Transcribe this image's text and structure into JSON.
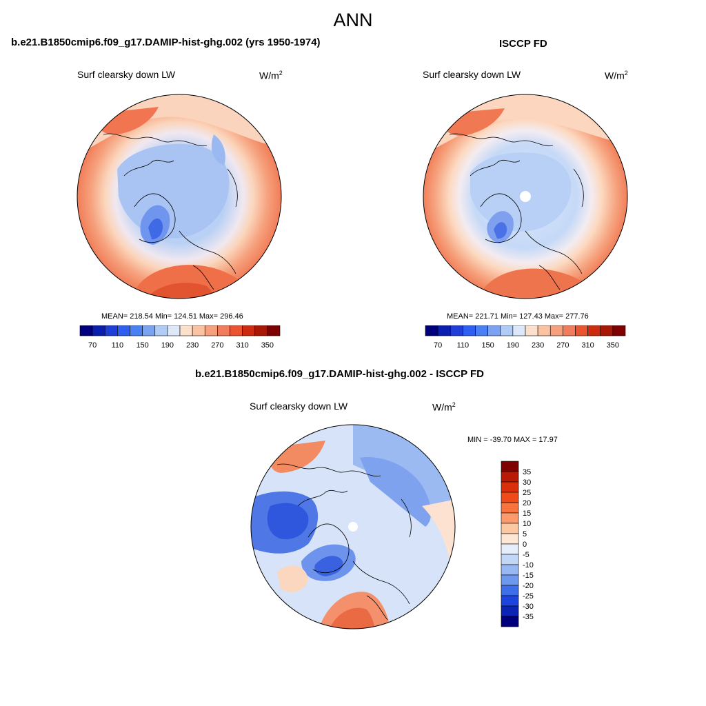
{
  "figure": {
    "title": "ANN"
  },
  "panels": {
    "model": {
      "title": "b.e21.B1850cmip6.f09_g17.DAMIP-hist-ghg.002 (yrs 1950-1974)",
      "variable": "Surf clearsky down LW",
      "units_base": "W/m",
      "units_exp": "2",
      "stats": "MEAN= 218.54  Min= 124.51  Max= 296.46"
    },
    "obs": {
      "title": "ISCCP FD",
      "variable": "Surf clearsky down LW",
      "units_base": "W/m",
      "units_exp": "2",
      "stats": "MEAN= 221.71  Min= 127.43  Max= 277.76"
    },
    "diff": {
      "title": "b.e21.B1850cmip6.f09_g17.DAMIP-hist-ghg.002 - ISCCP FD",
      "variable": "Surf clearsky down LW",
      "units_base": "W/m",
      "units_exp": "2",
      "stats": "MIN = -39.70 MAX =  17.97"
    }
  },
  "colorbars": {
    "absolute": {
      "colors": [
        "#00007f",
        "#0a1fb0",
        "#1f3fd8",
        "#2f5ff0",
        "#4a80f5",
        "#7ba3f2",
        "#b0cbf5",
        "#dde9f8",
        "#fde0cc",
        "#fbc2a3",
        "#f7a07e",
        "#f27c5c",
        "#ea5530",
        "#cc2b10",
        "#a81806",
        "#7f0000"
      ],
      "tick_labels": [
        "70",
        "110",
        "150",
        "190",
        "230",
        "270",
        "310",
        "350"
      ]
    },
    "difference": {
      "colors": [
        "#7f0000",
        "#b81a06",
        "#d92f0a",
        "#f04a18",
        "#f7743e",
        "#fb9a6c",
        "#fcc7a3",
        "#fde6d4",
        "#e6eefb",
        "#c2d6f6",
        "#97b8f3",
        "#6e97ee",
        "#3f6fe8",
        "#1d45de",
        "#0c24b4",
        "#00007f"
      ],
      "tick_labels": [
        "35",
        "30",
        "25",
        "20",
        "15",
        "10",
        "5",
        "0",
        "-5",
        "-10",
        "-15",
        "-20",
        "-25",
        "-30",
        "-35"
      ]
    }
  }
}
